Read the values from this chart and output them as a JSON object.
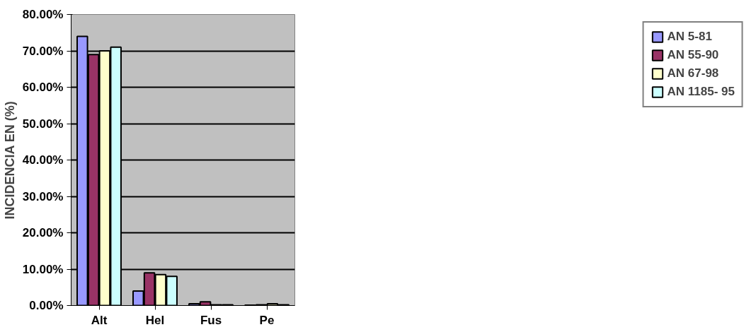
{
  "chart_data": {
    "type": "bar",
    "ylabel": "INCIDENCIA EN (%)",
    "categories": [
      "Alt",
      "Hel",
      "Fus",
      "Pe"
    ],
    "series": [
      {
        "name": "AN 5-81",
        "color": "#9999ff",
        "values": [
          74,
          4,
          0.5,
          0.1
        ]
      },
      {
        "name": "AN 55-90",
        "color": "#993366",
        "values": [
          69,
          9,
          1,
          0.2
        ]
      },
      {
        "name": "AN 67-98",
        "color": "#ffffcc",
        "values": [
          70,
          8.5,
          0.2,
          0.5
        ]
      },
      {
        "name": "AN 1185- 95",
        "color": "#ccffff",
        "values": [
          71,
          8,
          0.2,
          0.2
        ]
      }
    ],
    "ylim": [
      0,
      80
    ],
    "yticks": [
      {
        "value": 0,
        "label": "0.00%"
      },
      {
        "value": 10,
        "label": "10.00%"
      },
      {
        "value": 20,
        "label": "20.00%"
      },
      {
        "value": 30,
        "label": "30.00%"
      },
      {
        "value": 40,
        "label": "40.00%"
      },
      {
        "value": 50,
        "label": "50.00%"
      },
      {
        "value": 60,
        "label": "60.00%"
      },
      {
        "value": 70,
        "label": "70.00%"
      },
      {
        "value": 80,
        "label": "80.00%"
      }
    ],
    "grid": "y",
    "legend": "right"
  }
}
